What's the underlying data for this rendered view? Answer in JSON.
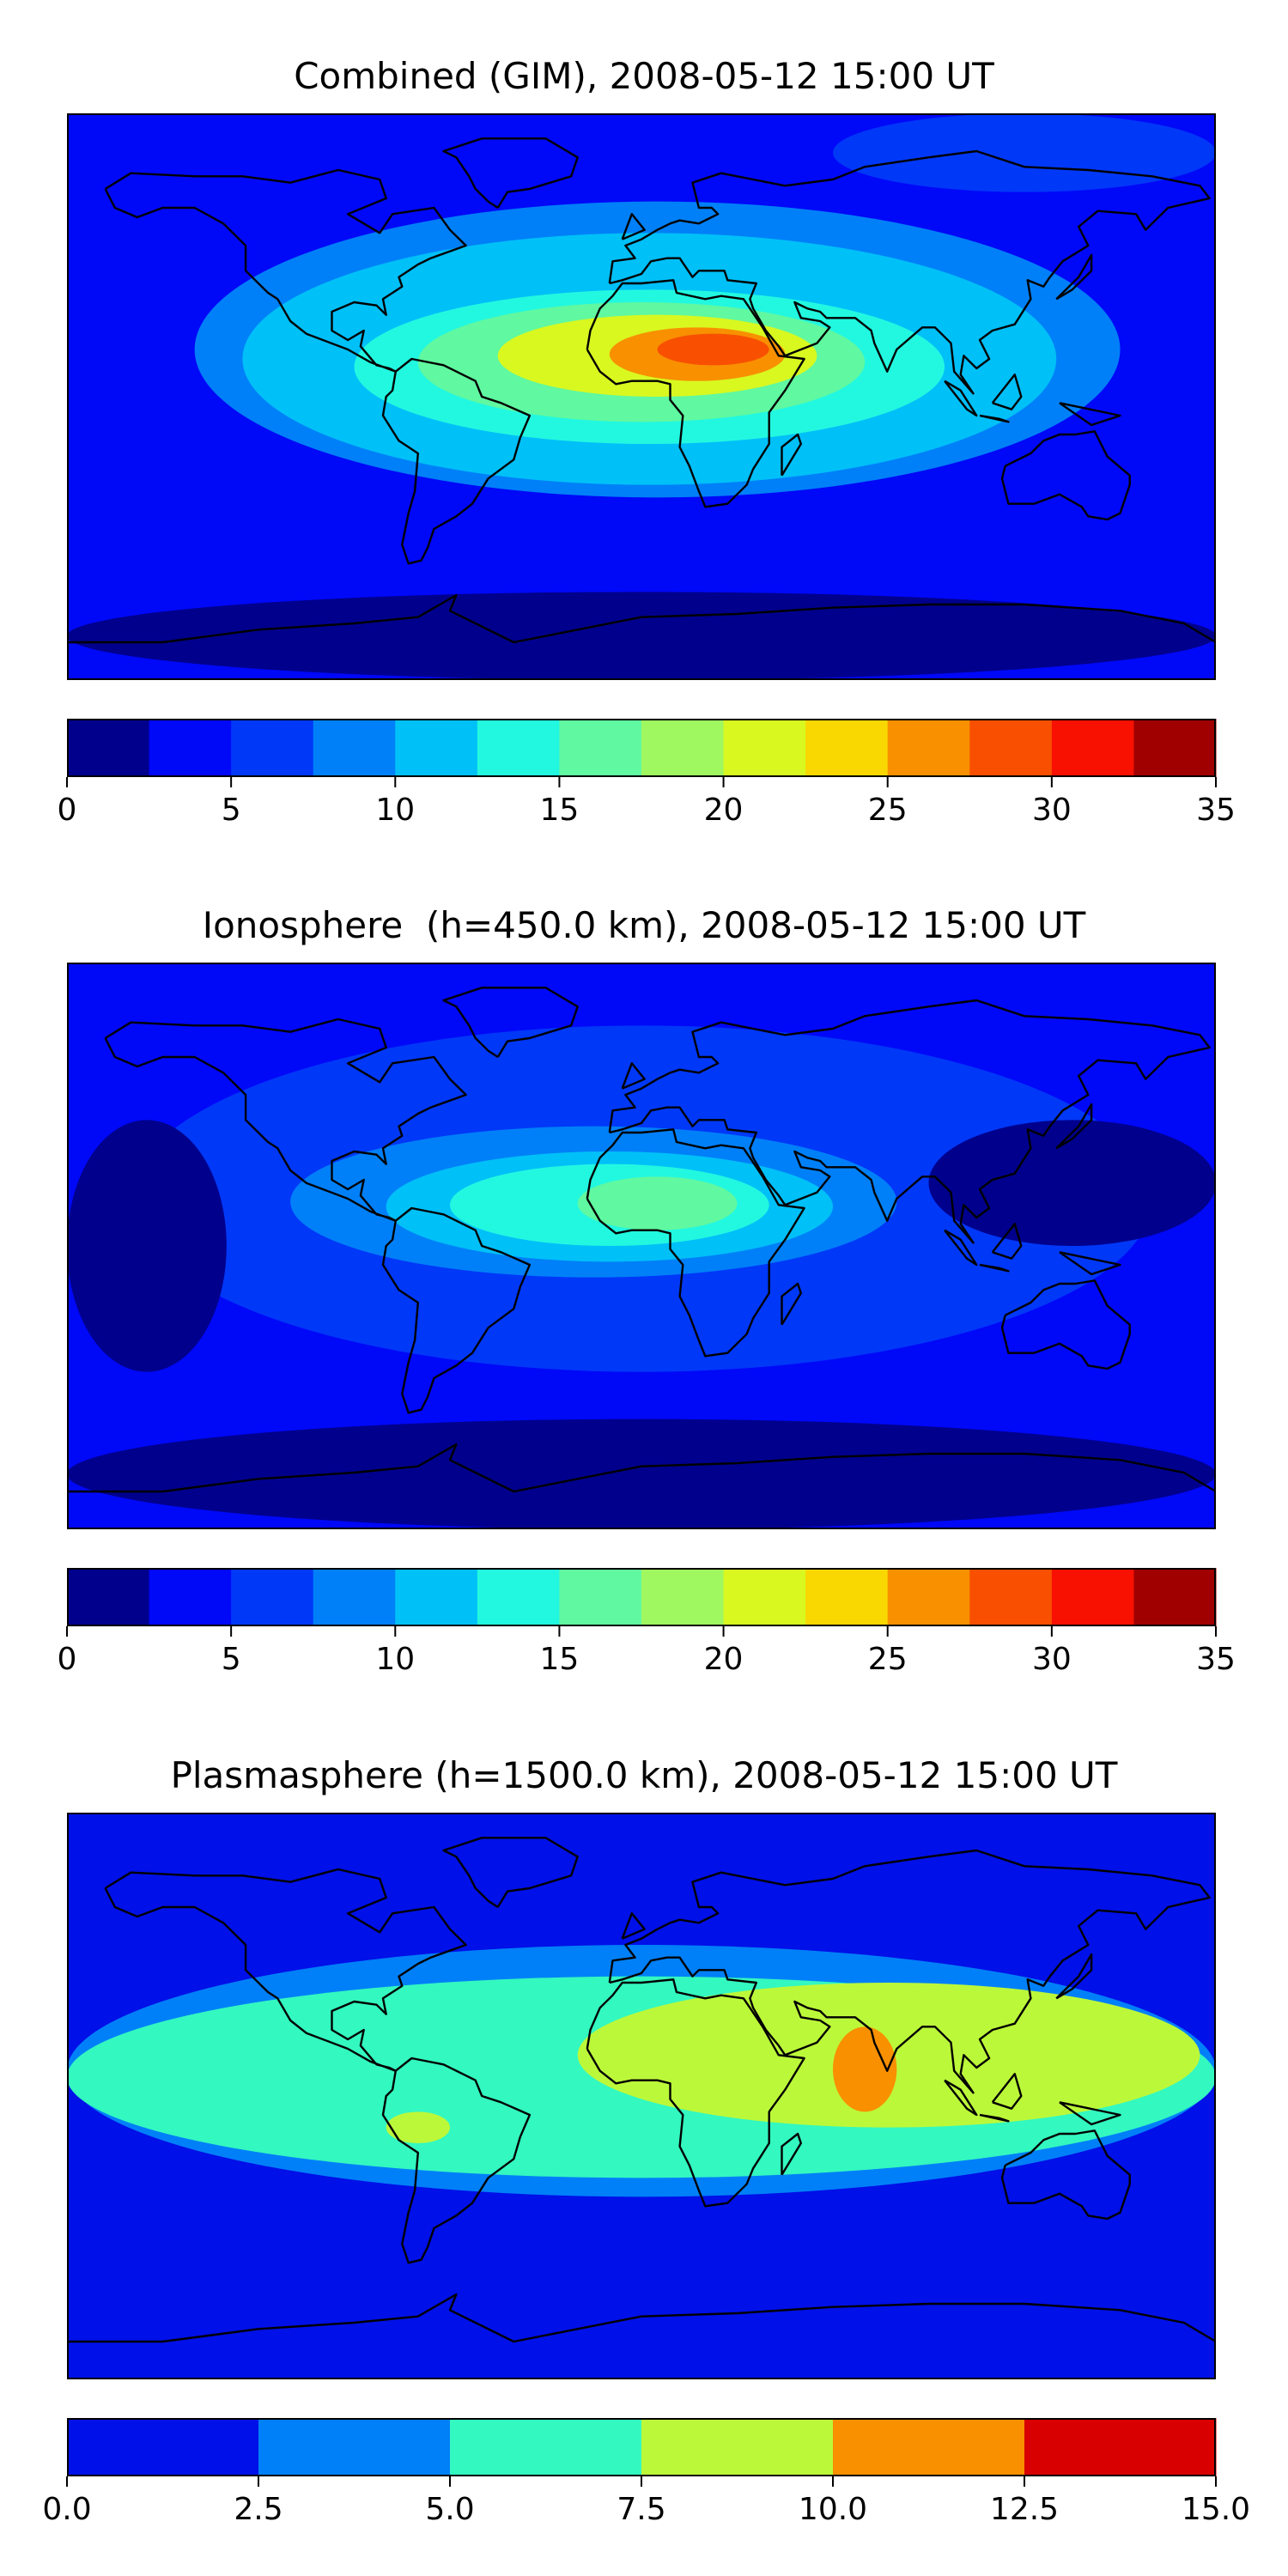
{
  "colorbar_1": {
    "ticks": [
      "0",
      "5",
      "10",
      "15",
      "20",
      "25",
      "30",
      "35"
    ],
    "range": [
      0,
      35
    ],
    "colors": [
      "#00008d",
      "#0008f8",
      "#0038f8",
      "#0080f8",
      "#00c0f8",
      "#22f8e0",
      "#60f8a0",
      "#a0f860",
      "#d8f820",
      "#f8d800",
      "#f89000",
      "#f85000",
      "#f81000",
      "#a00000"
    ]
  },
  "colorbar_2": {
    "ticks": [
      "0.0",
      "2.5",
      "5.0",
      "7.5",
      "10.0",
      "12.5",
      "15.0"
    ],
    "range": [
      0,
      15
    ],
    "colors": [
      "#0010e8",
      "#0080f8",
      "#33f8c0",
      "#bcf83a",
      "#f89000",
      "#d80000"
    ]
  },
  "chart_data": [
    {
      "type": "heatmap",
      "title": "Combined (GIM), 2008-05-12 15:00 UT",
      "colorbar": "colorbar_1",
      "regions": [
        {
          "lon": [
            -180,
            180
          ],
          "lat": [
            -90,
            90
          ],
          "level": 2.5
        },
        {
          "lon": [
            -140,
            150
          ],
          "lat": [
            -32,
            62
          ],
          "level": 7.5
        },
        {
          "lon": [
            -125,
            130
          ],
          "lat": [
            -28,
            52
          ],
          "level": 10
        },
        {
          "lon": [
            -90,
            95
          ],
          "lat": [
            -15,
            34
          ],
          "level": 12.5
        },
        {
          "lon": [
            -70,
            70
          ],
          "lat": [
            -8,
            30
          ],
          "level": 15
        },
        {
          "lon": [
            -45,
            55
          ],
          "lat": [
            0,
            26
          ],
          "level": 20
        },
        {
          "lon": [
            -10,
            45
          ],
          "lat": [
            5,
            22
          ],
          "level": 25
        },
        {
          "lon": [
            5,
            40
          ],
          "lat": [
            10,
            20
          ],
          "level": 27.5
        },
        {
          "lon": [
            -180,
            180
          ],
          "lat": [
            -90,
            -62
          ],
          "level": 0
        },
        {
          "lon": [
            60,
            180
          ],
          "lat": [
            65,
            90
          ],
          "level": 5
        }
      ]
    },
    {
      "type": "heatmap",
      "title": "Ionosphere  (h=450.0 km), 2008-05-12 15:00 UT",
      "colorbar": "colorbar_1",
      "regions": [
        {
          "lon": [
            -180,
            180
          ],
          "lat": [
            -90,
            90
          ],
          "level": 2.5
        },
        {
          "lon": [
            -160,
            160
          ],
          "lat": [
            -40,
            70
          ],
          "level": 5
        },
        {
          "lon": [
            -110,
            80
          ],
          "lat": [
            -10,
            38
          ],
          "level": 7.5
        },
        {
          "lon": [
            -80,
            60
          ],
          "lat": [
            -5,
            30
          ],
          "level": 10
        },
        {
          "lon": [
            -60,
            40
          ],
          "lat": [
            0,
            26
          ],
          "level": 12.5
        },
        {
          "lon": [
            -20,
            30
          ],
          "lat": [
            5,
            22
          ],
          "level": 15
        },
        {
          "lon": [
            90,
            180
          ],
          "lat": [
            0,
            40
          ],
          "level": 0
        },
        {
          "lon": [
            -180,
            -130
          ],
          "lat": [
            -40,
            40
          ],
          "level": 0
        },
        {
          "lon": [
            -180,
            180
          ],
          "lat": [
            -90,
            -55
          ],
          "level": 0
        }
      ]
    },
    {
      "type": "heatmap",
      "title": "Plasmasphere (h=1500.0 km), 2008-05-12 15:00 UT",
      "colorbar": "colorbar_2",
      "regions": [
        {
          "lon": [
            -180,
            180
          ],
          "lat": [
            -90,
            90
          ],
          "level": 0
        },
        {
          "lon": [
            -180,
            180
          ],
          "lat": [
            -32,
            48
          ],
          "level": 2.5
        },
        {
          "lon": [
            -180,
            180
          ],
          "lat": [
            -26,
            38
          ],
          "level": 5
        },
        {
          "lon": [
            -20,
            175
          ],
          "lat": [
            -10,
            36
          ],
          "level": 7.5
        },
        {
          "lon": [
            -80,
            -60
          ],
          "lat": [
            -15,
            -5
          ],
          "level": 7.5
        },
        {
          "lon": [
            60,
            80
          ],
          "lat": [
            -5,
            22
          ],
          "level": 10
        }
      ]
    }
  ],
  "panels": [
    {
      "title": "Combined (GIM), 2008-05-12 15:00 UT"
    },
    {
      "title": "Ionosphere  (h=450.0 km), 2008-05-12 15:00 UT"
    },
    {
      "title": "Plasmasphere (h=1500.0 km), 2008-05-12 15:00 UT"
    }
  ]
}
